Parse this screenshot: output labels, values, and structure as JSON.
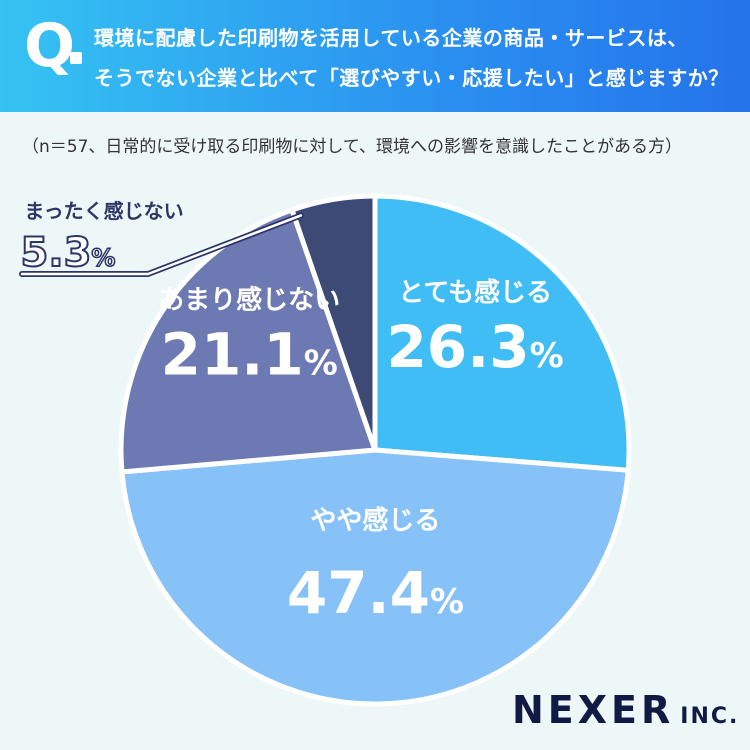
{
  "header": {
    "q_mark": "Q",
    "question_line1": "環境に配慮した印刷物を活用している企業の商品・サービスは、",
    "question_line2": "そうでない企業と比べて「選びやすい・応援したい」と感じますか？"
  },
  "note": "（n＝57、日常的に受け取る印刷物に対して、環境への影響を意識したことがある方）",
  "logo": {
    "main": "NEXER",
    "sub": "INC."
  },
  "colors": {
    "background": "#eef7f7",
    "header_start": "#35c3f2",
    "header_end": "#2473ea",
    "slice_1": "#41bdf5",
    "slice_2": "#86c2f8",
    "slice_3": "#6d79b3",
    "slice_4": "#3e4a76",
    "label_dark": "#2e3668"
  },
  "chart_data": {
    "type": "pie",
    "categories": [
      "とても感じる",
      "やや感じる",
      "あまり感じない",
      "まったく感じない"
    ],
    "values": [
      26.3,
      47.4,
      21.1,
      5.3
    ],
    "value_labels": [
      "26.3",
      "47.4",
      "21.1",
      "5.3"
    ],
    "unit": "%",
    "start": "12 o'clock",
    "direction": "clockwise"
  }
}
